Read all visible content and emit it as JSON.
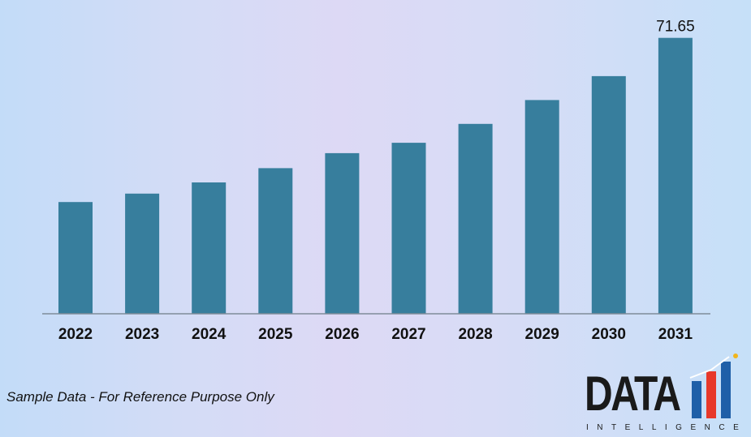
{
  "chart_data": {
    "type": "bar",
    "categories": [
      "2022",
      "2023",
      "2024",
      "2025",
      "2026",
      "2027",
      "2028",
      "2029",
      "2030",
      "2031"
    ],
    "values": [
      29.0,
      31.2,
      34.1,
      37.8,
      41.7,
      44.4,
      49.3,
      55.5,
      61.7,
      71.65
    ],
    "data_labels": [
      {
        "index": 9,
        "text": "71.65"
      }
    ],
    "ylim": [
      0,
      72
    ],
    "grid": false,
    "legend": "none",
    "colors": {
      "bar": "#377e9d",
      "axis": "#7f8c99",
      "text": "#111111"
    }
  },
  "footer": {
    "note": "Sample Data - For Reference Purpose Only"
  },
  "logo": {
    "word": "DATA",
    "sub": "INTELLIGENCE",
    "colors": {
      "bar1": "#1f5fa8",
      "bar2": "#e7382a",
      "bar3": "#1f5fa8",
      "dot": "#f1b51c"
    }
  }
}
